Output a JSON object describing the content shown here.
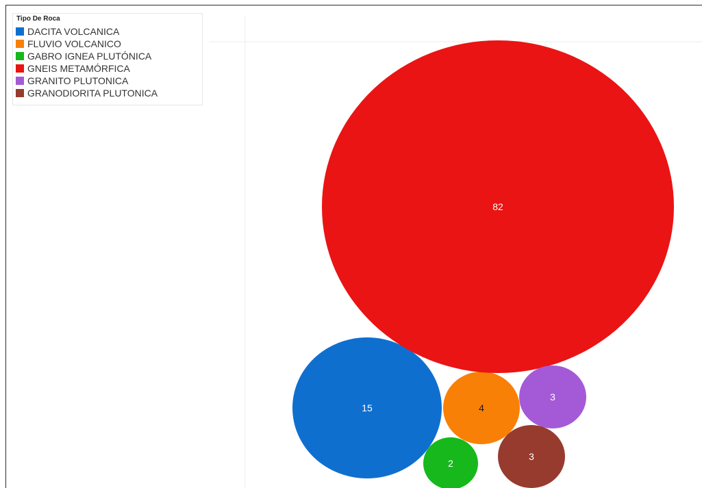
{
  "chart_data": {
    "type": "bubble",
    "title": "",
    "legend": {
      "title": "Tipo De Roca",
      "placement": "top-left",
      "entries": [
        {
          "label": "DACITA  VOLCANICA",
          "color": "#0f6fcf"
        },
        {
          "label": "FLUVIO VOLCANICO",
          "color": "#f98006"
        },
        {
          "label": "GABRO IGNEA PLUTÓNICA",
          "color": "#16b81c"
        },
        {
          "label": "GNEIS METAMÓRFICA",
          "color": "#ea1414"
        },
        {
          "label": "GRANITO PLUTONICA",
          "color": "#a45ad6"
        },
        {
          "label": "GRANODIORITA PLUTONICA",
          "color": "#973b2f"
        }
      ]
    },
    "series": [
      {
        "category": "DACITA  VOLCANICA",
        "value": 15,
        "color": "#0f6fcf",
        "label_color": "#ffffff"
      },
      {
        "category": "FLUVIO VOLCANICO",
        "value": 4,
        "color": "#f98006",
        "label_color": "#1a1a1a"
      },
      {
        "category": "GABRO IGNEA PLUTÓNICA",
        "value": 2,
        "color": "#16b81c",
        "label_color": "#ffffff"
      },
      {
        "category": "GNEIS METAMÓRFICA",
        "value": 82,
        "color": "#ea1414",
        "label_color": "#ffffff"
      },
      {
        "category": "GRANITO PLUTONICA",
        "value": 3,
        "color": "#a45ad6",
        "label_color": "#ffffff"
      },
      {
        "category": "GRANODIORITA PLUTONICA",
        "value": 3,
        "color": "#973b2f",
        "label_color": "#ffffff"
      }
    ],
    "grid": true
  }
}
